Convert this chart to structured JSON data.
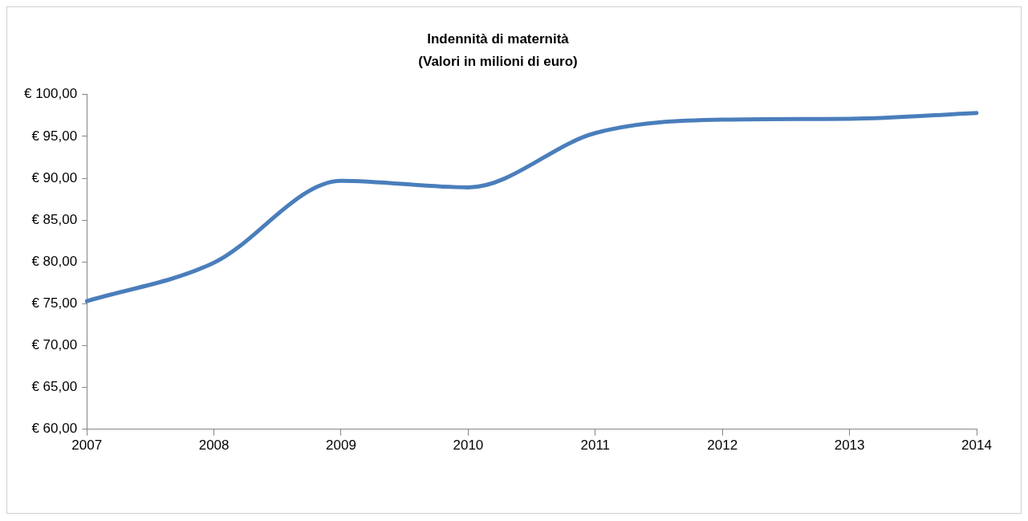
{
  "chart_data": {
    "type": "line",
    "title": "Indennità di maternità",
    "subtitle": "(Valori in milioni di euro)",
    "categories": [
      "2007",
      "2008",
      "2009",
      "2010",
      "2011",
      "2012",
      "2013",
      "2014"
    ],
    "series": [
      {
        "color": "#4a7ebb",
        "values": [
          75.3,
          79.9,
          89.7,
          88.9,
          95.4,
          97.0,
          97.1,
          97.8
        ]
      }
    ],
    "ylim": [
      60,
      100
    ],
    "yticks": [
      {
        "value": 60,
        "label": "€ 60,00"
      },
      {
        "value": 65,
        "label": "€ 65,00"
      },
      {
        "value": 70,
        "label": "€ 70,00"
      },
      {
        "value": 75,
        "label": "€ 75,00"
      },
      {
        "value": 80,
        "label": "€ 80,00"
      },
      {
        "value": 85,
        "label": "€ 85,00"
      },
      {
        "value": 90,
        "label": "€ 90,00"
      },
      {
        "value": 95,
        "label": "€ 95,00"
      },
      {
        "value": 100,
        "label": "€ 100,00"
      }
    ],
    "grid": false,
    "legend": false,
    "marker": "none"
  }
}
